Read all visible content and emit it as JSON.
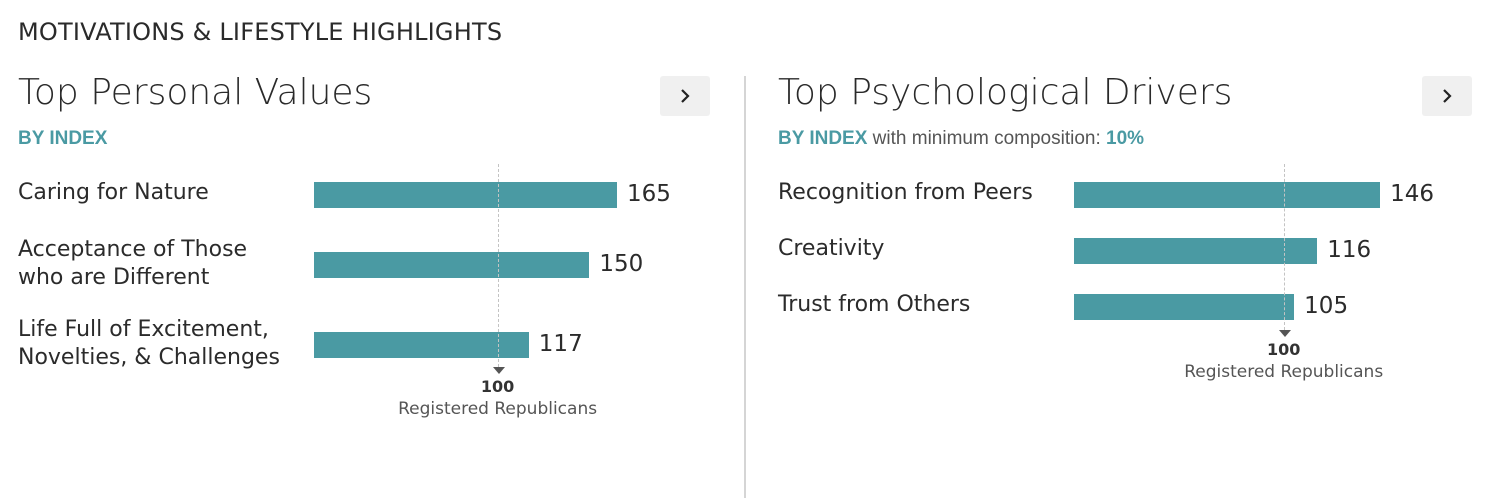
{
  "header": {
    "title": "MOTIVATIONS & LIFESTYLE HIGHLIGHTS"
  },
  "panels": [
    {
      "title": "Top Personal Values",
      "subtitle_accent": "BY INDEX",
      "subtitle_text": "",
      "subtitle_value": ""
    },
    {
      "title": "Top Psychological Drivers",
      "subtitle_accent": "BY INDEX",
      "subtitle_text": " with minimum composition: ",
      "subtitle_value": "10%"
    }
  ],
  "chart_data": [
    {
      "type": "bar",
      "orientation": "horizontal",
      "categories": [
        "Caring for Nature",
        "Acceptance of Those\nwho are Different",
        "Life Full of Excitement,\nNovelties, & Challenges"
      ],
      "values": [
        165,
        150,
        117
      ],
      "reference": {
        "value": 100,
        "value_label": "100",
        "label": "Registered Republicans"
      },
      "bar_color": "#4a9aa3"
    },
    {
      "type": "bar",
      "orientation": "horizontal",
      "categories": [
        "Recognition from Peers",
        "Creativity",
        "Trust from Others"
      ],
      "values": [
        146,
        116,
        105
      ],
      "reference": {
        "value": 100,
        "value_label": "100",
        "label": "Registered Republicans"
      },
      "bar_color": "#4a9aa3"
    }
  ]
}
